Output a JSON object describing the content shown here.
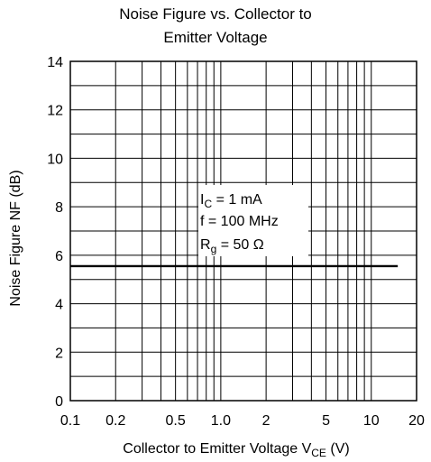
{
  "chart_data": {
    "type": "line",
    "title_lines": [
      "Noise Figure vs. Collector to",
      "Emitter Voltage"
    ],
    "xlabel": {
      "main": "Collector to Emitter Voltage  V",
      "sub": "CE",
      "unit": "  (V)"
    },
    "ylabel": "Noise Figure  NF  (dB)",
    "x_scale": "log",
    "xlim": [
      0.1,
      20
    ],
    "ylim": [
      0,
      14
    ],
    "x_ticks": [
      0.1,
      0.2,
      0.5,
      1.0,
      2,
      5,
      10,
      20
    ],
    "x_tick_labels": [
      "0.1",
      "0.2",
      "0.5",
      "1.0",
      "2",
      "5",
      "10",
      "20"
    ],
    "y_ticks": [
      0,
      2,
      4,
      6,
      8,
      10,
      12,
      14
    ],
    "y_tick_labels": [
      "0",
      "2",
      "4",
      "6",
      "8",
      "10",
      "12",
      "14"
    ],
    "grid": true,
    "series": [
      {
        "x": [
          0.1,
          15
        ],
        "y": [
          5.55,
          5.55
        ]
      }
    ],
    "conditions": [
      {
        "main": "I",
        "sub": "C",
        "rest": " = 1 mA"
      },
      {
        "main": "f = 100 MHz",
        "sub": "",
        "rest": ""
      },
      {
        "main": "R",
        "sub": "g",
        "rest": " = 50 Ω"
      }
    ]
  }
}
